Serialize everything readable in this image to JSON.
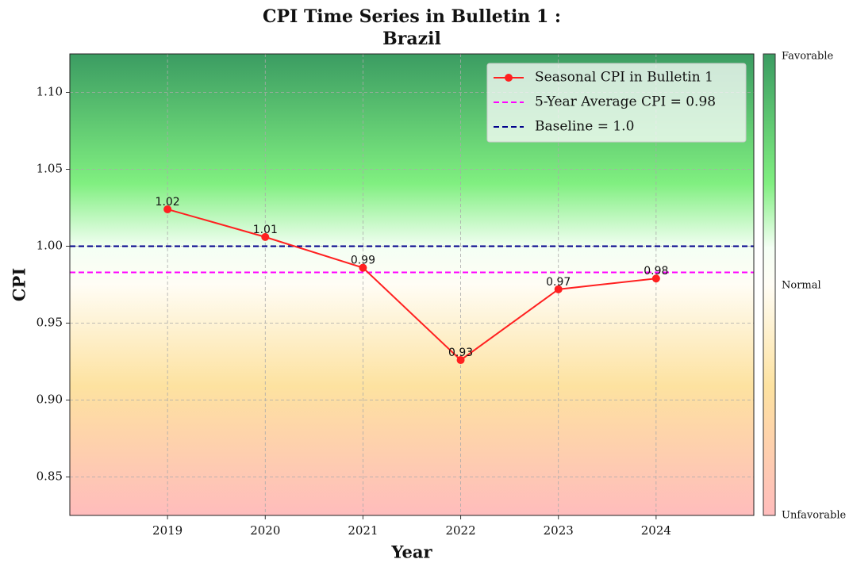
{
  "chart_data": {
    "type": "line",
    "title": [
      "CPI Time Series in Bulletin 1 :",
      "Brazil"
    ],
    "xlabel": "Year",
    "ylabel": "CPI",
    "x": [
      2019,
      2020,
      2021,
      2022,
      2023,
      2024
    ],
    "series": [
      {
        "name": "Seasonal CPI in Bulletin 1",
        "color": "#ff2020",
        "values": [
          1.024,
          1.006,
          0.986,
          0.926,
          0.972,
          0.979
        ],
        "value_labels": [
          "1.02",
          "1.01",
          "0.99",
          "0.93",
          "0.97",
          "0.98"
        ]
      }
    ],
    "hlines": [
      {
        "name": "5-Year Average CPI = 0.98",
        "value": 0.983,
        "color": "#ff00ff"
      },
      {
        "name": "Baseline = 1.0",
        "value": 1.0,
        "color": "#00008b"
      }
    ],
    "xlim": [
      2018,
      2025
    ],
    "xticks": [
      2019,
      2020,
      2021,
      2022,
      2023,
      2024
    ],
    "ylim": [
      0.825,
      1.125
    ],
    "yticks": [
      0.85,
      {
        "value": 0.9,
        "label": "0.90"
      },
      0.95,
      {
        "value": 1.0,
        "label": "1.00"
      },
      1.05,
      {
        "value": 1.1,
        "label": "1.10"
      }
    ],
    "grid": true,
    "legend": "upper right",
    "colorbar_labels": [
      "Favorable",
      "Normal",
      "Unfavorable"
    ]
  }
}
